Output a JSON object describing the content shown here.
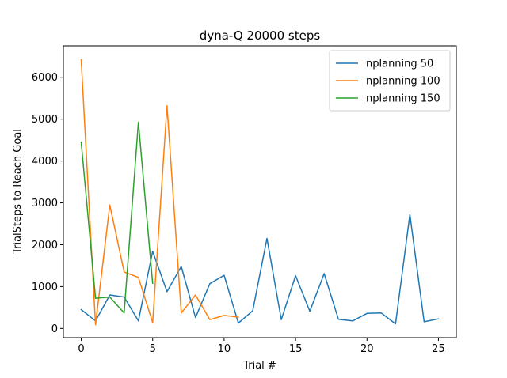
{
  "chart_data": {
    "type": "line",
    "title": "dyna-Q 20000 steps",
    "xlabel": "Trial #",
    "ylabel": "TrialSteps to Reach Goal",
    "xlim": [
      -1.25,
      26.25
    ],
    "ylim": [
      -220,
      6750
    ],
    "xticks": [
      0,
      5,
      10,
      15,
      20,
      25
    ],
    "yticks": [
      0,
      1000,
      2000,
      3000,
      4000,
      5000,
      6000
    ],
    "grid": false,
    "legend_position": "top-right",
    "series": [
      {
        "name": "nplanning 50",
        "color": "#1f77b4",
        "x": [
          0,
          1,
          2,
          3,
          4,
          5,
          6,
          7,
          8,
          9,
          10,
          11,
          12,
          13,
          14,
          15,
          16,
          17,
          18,
          19,
          20,
          21,
          22,
          23,
          24,
          25
        ],
        "values": [
          450,
          180,
          800,
          750,
          180,
          1840,
          880,
          1480,
          260,
          1070,
          1270,
          130,
          420,
          2150,
          210,
          1260,
          410,
          1310,
          220,
          180,
          360,
          370,
          110,
          2720,
          160,
          230
        ]
      },
      {
        "name": "nplanning 100",
        "color": "#ff7f0e",
        "x": [
          0,
          1,
          2,
          3,
          4,
          5,
          6,
          7,
          8,
          9,
          10,
          11
        ],
        "values": [
          6420,
          90,
          2950,
          1350,
          1220,
          140,
          5320,
          370,
          800,
          210,
          310,
          270
        ]
      },
      {
        "name": "nplanning 150",
        "color": "#2ca02c",
        "x": [
          0,
          1,
          2,
          3,
          4,
          5
        ],
        "values": [
          4450,
          720,
          750,
          370,
          4930,
          1080
        ]
      }
    ]
  }
}
